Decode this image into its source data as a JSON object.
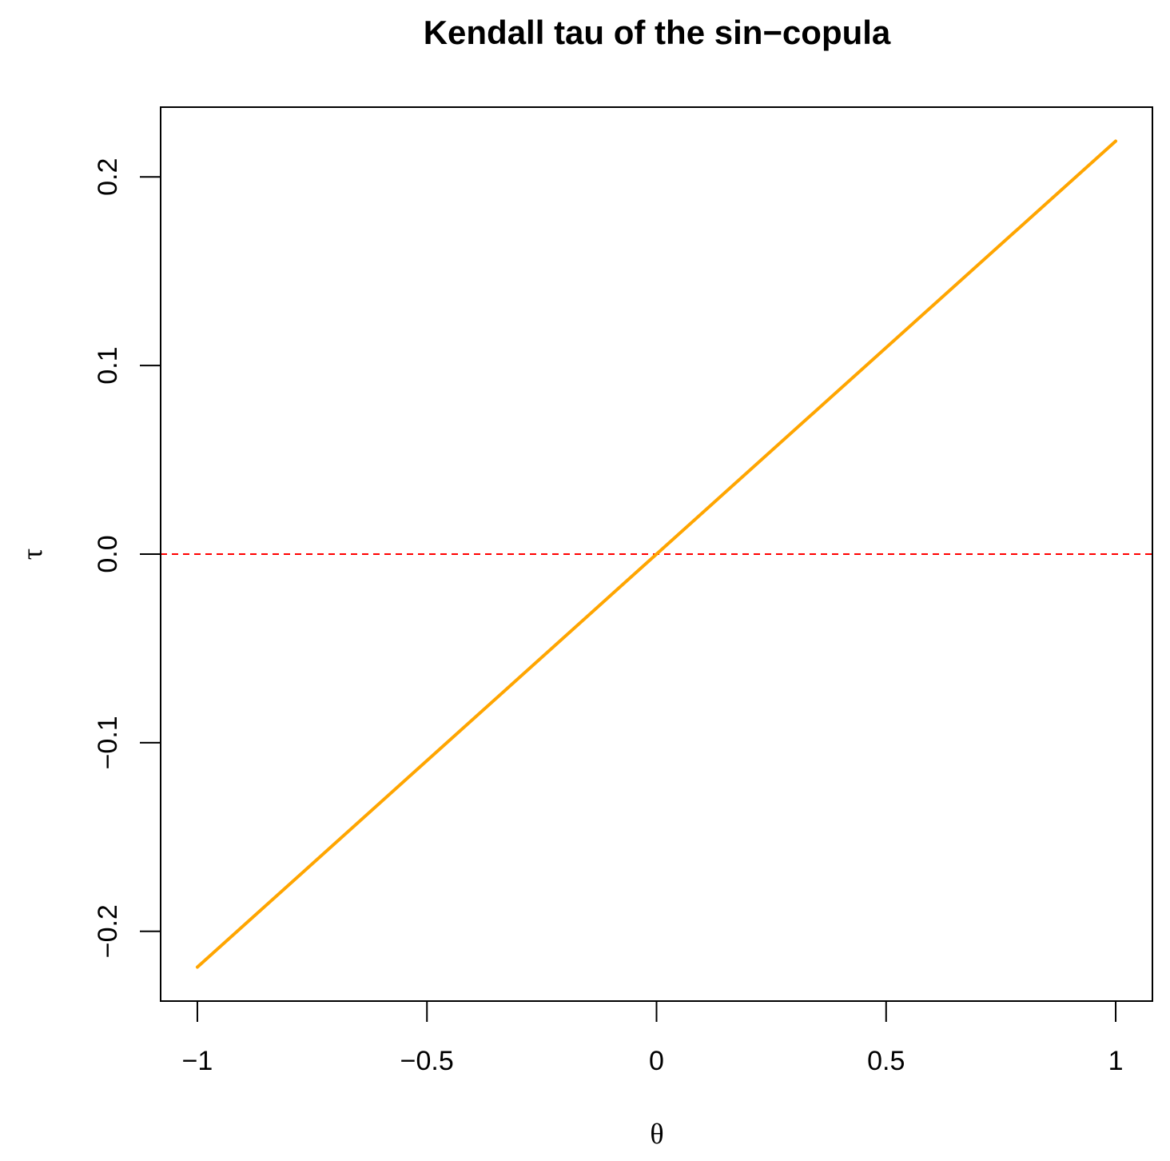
{
  "chart_data": {
    "type": "line",
    "title": "Kendall tau of the sin−copula",
    "xlabel": "θ",
    "ylabel": "τ",
    "xlim": [
      -1.08,
      1.08
    ],
    "ylim": [
      -0.237,
      0.237
    ],
    "x_ticks": [
      {
        "value": -1,
        "label": "−1"
      },
      {
        "value": -0.5,
        "label": "−0.5"
      },
      {
        "value": 0,
        "label": "0"
      },
      {
        "value": 0.5,
        "label": "0.5"
      },
      {
        "value": 1,
        "label": "1"
      }
    ],
    "y_ticks": [
      {
        "value": -0.2,
        "label": "−0.2"
      },
      {
        "value": -0.1,
        "label": "−0.1"
      },
      {
        "value": 0,
        "label": "0.0"
      },
      {
        "value": 0.1,
        "label": "0.1"
      },
      {
        "value": 0.2,
        "label": "0.2"
      }
    ],
    "grid": false,
    "series": [
      {
        "color": "#FFA500",
        "x": [
          -1,
          -0.5,
          0,
          0.5,
          1
        ],
        "y": [
          -0.219,
          -0.1095,
          0,
          0.1095,
          0.219
        ]
      }
    ],
    "reference_lines": [
      {
        "orientation": "horizontal",
        "y": 0,
        "color": "#FF0000",
        "style": "dashed"
      }
    ]
  }
}
